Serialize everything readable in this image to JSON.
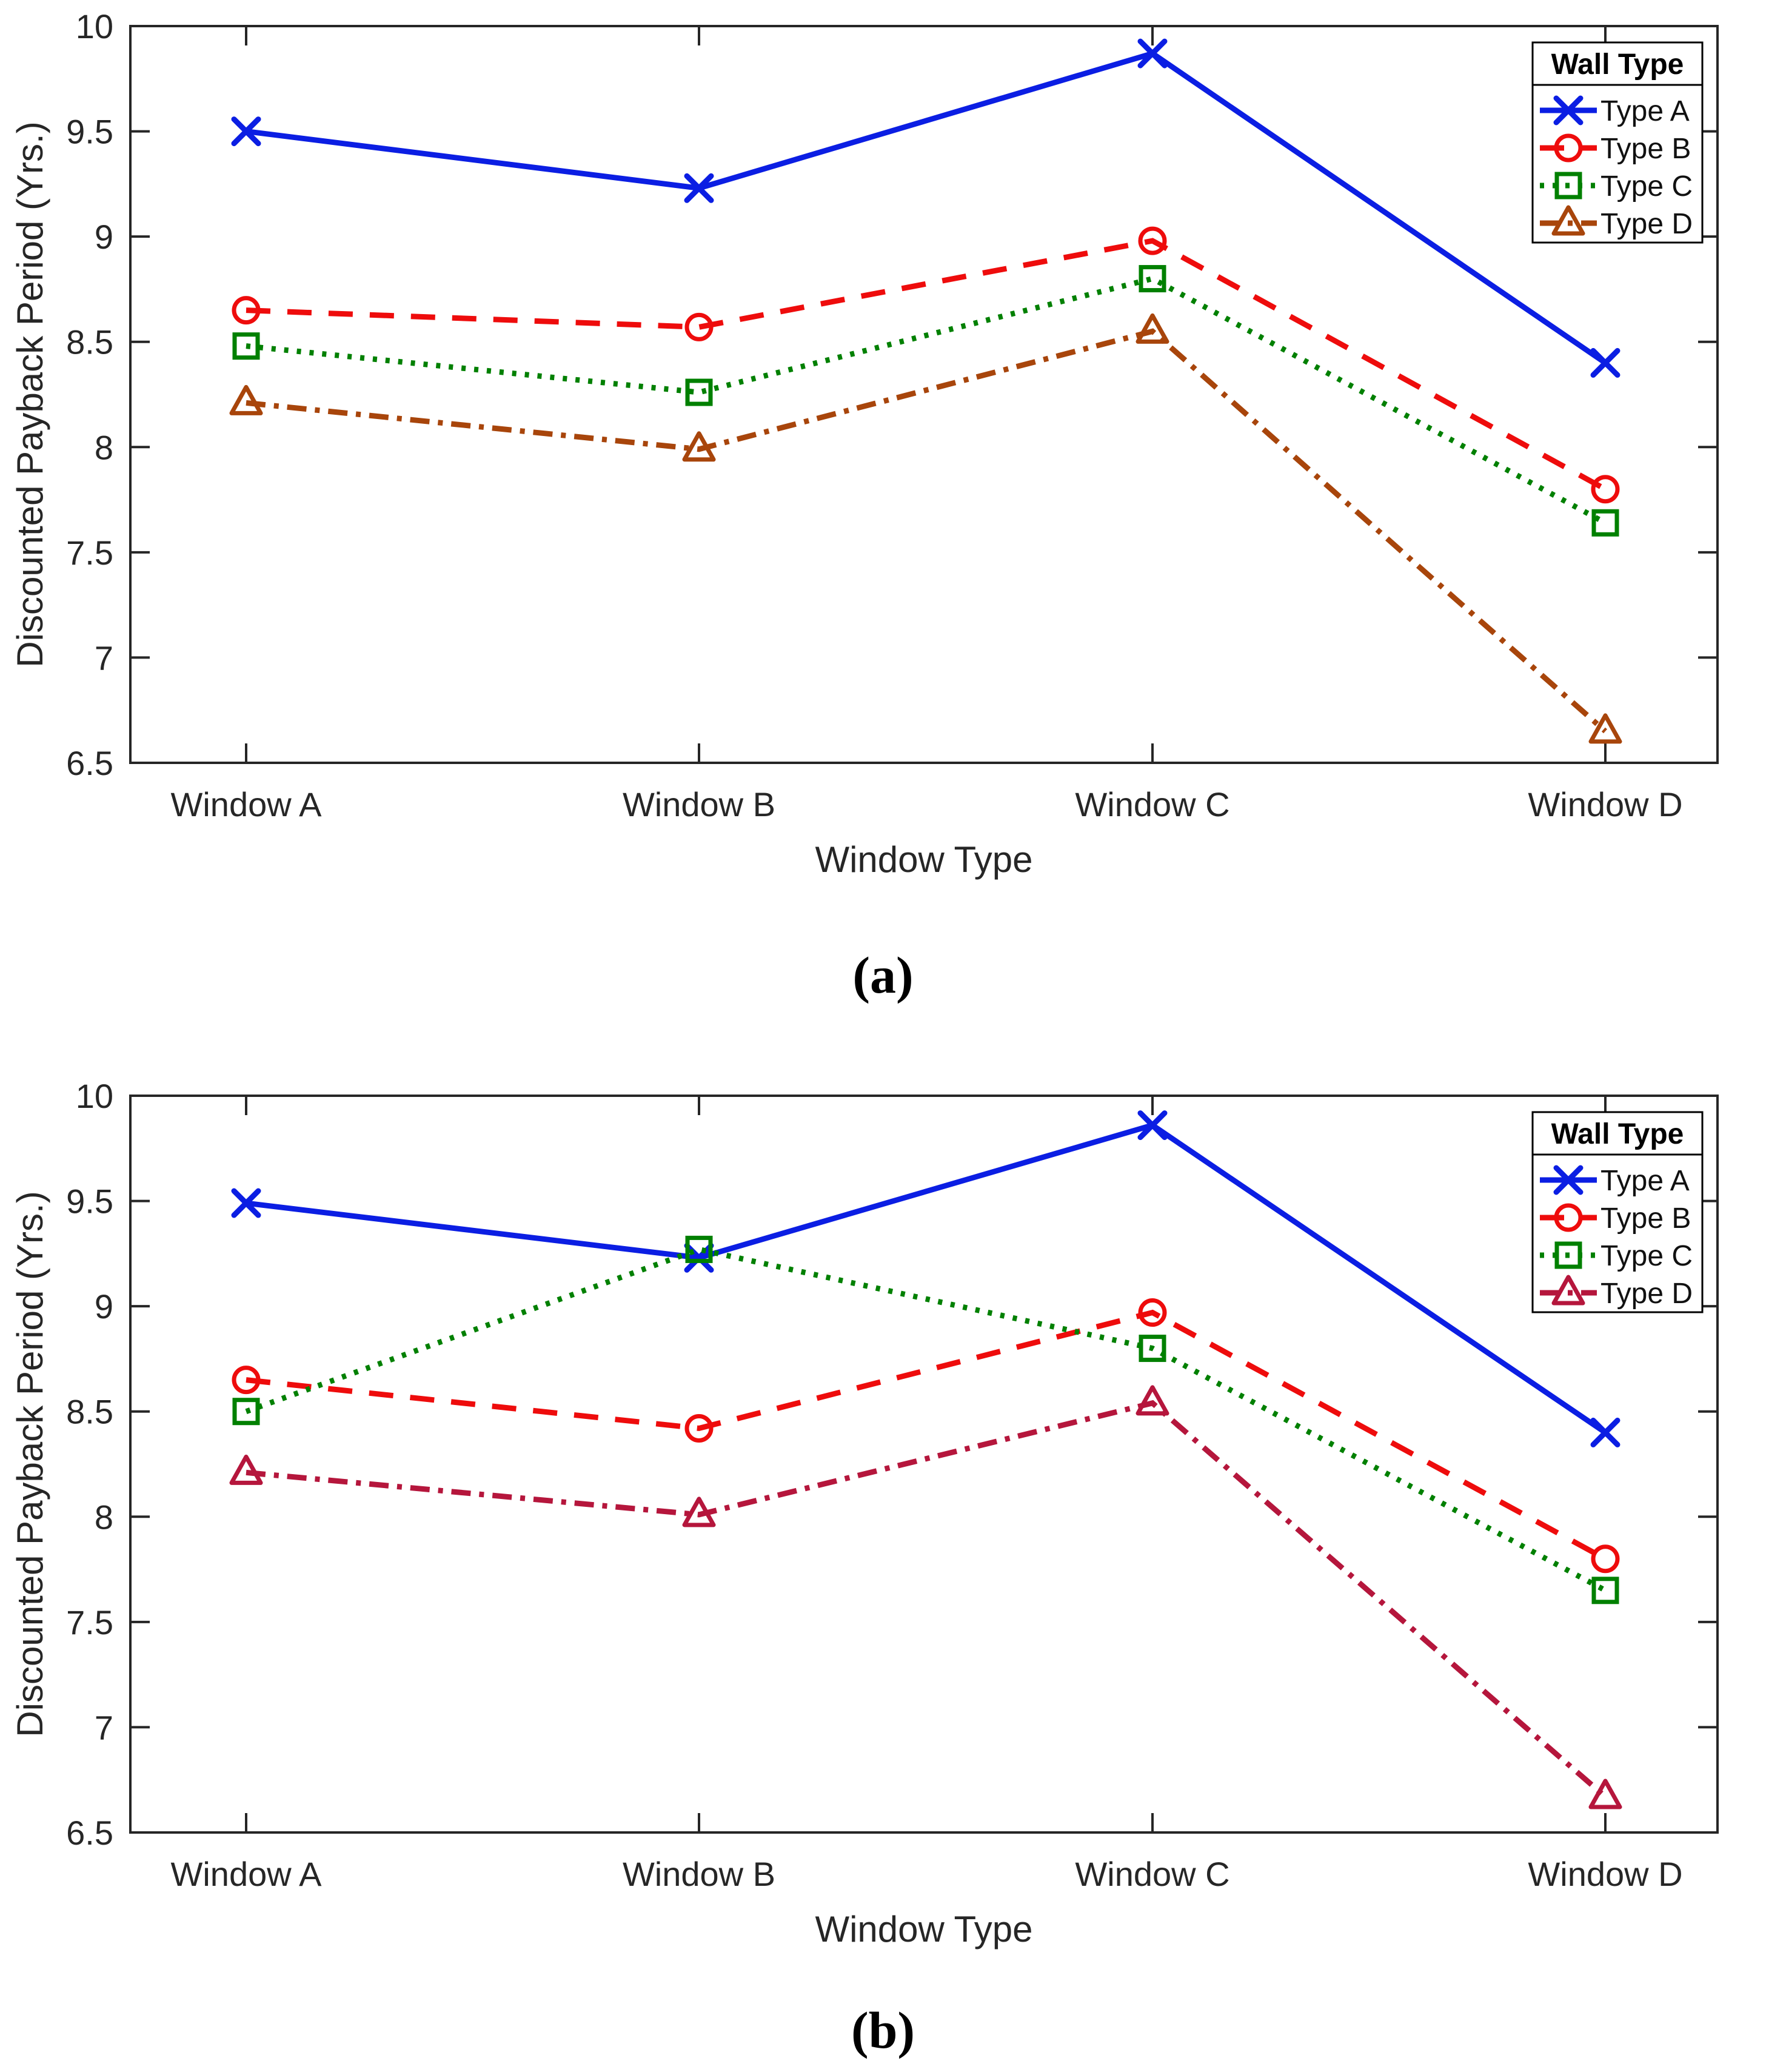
{
  "figure": {
    "background": "#ffffff",
    "axis_color": "#262626",
    "caption_a": "(a)",
    "caption_b": "(b)"
  },
  "chart_data": [
    {
      "panel": "a",
      "type": "line",
      "caption": "(a)",
      "title": "",
      "xlabel": "Window Type",
      "ylabel": "Discounted Payback Period (Yrs.)",
      "categories": [
        "Window A",
        "Window B",
        "Window C",
        "Window D"
      ],
      "ylim": [
        6.5,
        10
      ],
      "ytick_step": 0.5,
      "ytick_labels": [
        "6.5",
        "7",
        "7.5",
        "8",
        "8.5",
        "9",
        "9.5",
        "10"
      ],
      "grid": "off",
      "legend": {
        "title": "Wall Type",
        "position": "top-right"
      },
      "series": [
        {
          "name": "Type A",
          "color": "#0b1ee3",
          "marker": "x",
          "line_style": "solid",
          "values": [
            9.5,
            9.23,
            9.87,
            8.4
          ]
        },
        {
          "name": "Type B",
          "color": "#ee0c0c",
          "marker": "circle",
          "line_style": "dashed",
          "values": [
            8.65,
            8.57,
            8.98,
            7.8
          ]
        },
        {
          "name": "Type C",
          "color": "#008000",
          "marker": "square",
          "line_style": "dotted",
          "values": [
            8.48,
            8.26,
            8.8,
            7.64
          ]
        },
        {
          "name": "Type D",
          "color": "#a8450b",
          "marker": "triangle",
          "line_style": "dashdot",
          "values": [
            8.21,
            7.99,
            8.55,
            6.65
          ]
        }
      ]
    },
    {
      "panel": "b",
      "type": "line",
      "caption": "(b)",
      "title": "",
      "xlabel": "Window Type",
      "ylabel": "Discounted Payback Period (Yrs.)",
      "categories": [
        "Window A",
        "Window B",
        "Window C",
        "Window D"
      ],
      "ylim": [
        6.5,
        10
      ],
      "ytick_step": 0.5,
      "ytick_labels": [
        "6.5",
        "7",
        "7.5",
        "8",
        "8.5",
        "9",
        "9.5",
        "10"
      ],
      "grid": "off",
      "legend": {
        "title": "Wall Type",
        "position": "top-right"
      },
      "series": [
        {
          "name": "Type A",
          "color": "#0b1ee3",
          "marker": "x",
          "line_style": "solid",
          "values": [
            9.49,
            9.23,
            9.86,
            8.4
          ]
        },
        {
          "name": "Type B",
          "color": "#ee0c0c",
          "marker": "circle",
          "line_style": "dashed",
          "values": [
            8.65,
            8.42,
            8.97,
            7.8
          ]
        },
        {
          "name": "Type C",
          "color": "#008000",
          "marker": "square",
          "line_style": "dotted",
          "values": [
            8.5,
            9.27,
            8.8,
            7.65
          ]
        },
        {
          "name": "Type D",
          "color": "#b5163c",
          "marker": "triangle",
          "line_style": "dashdot",
          "values": [
            8.21,
            8.01,
            8.54,
            6.67
          ]
        }
      ]
    }
  ]
}
